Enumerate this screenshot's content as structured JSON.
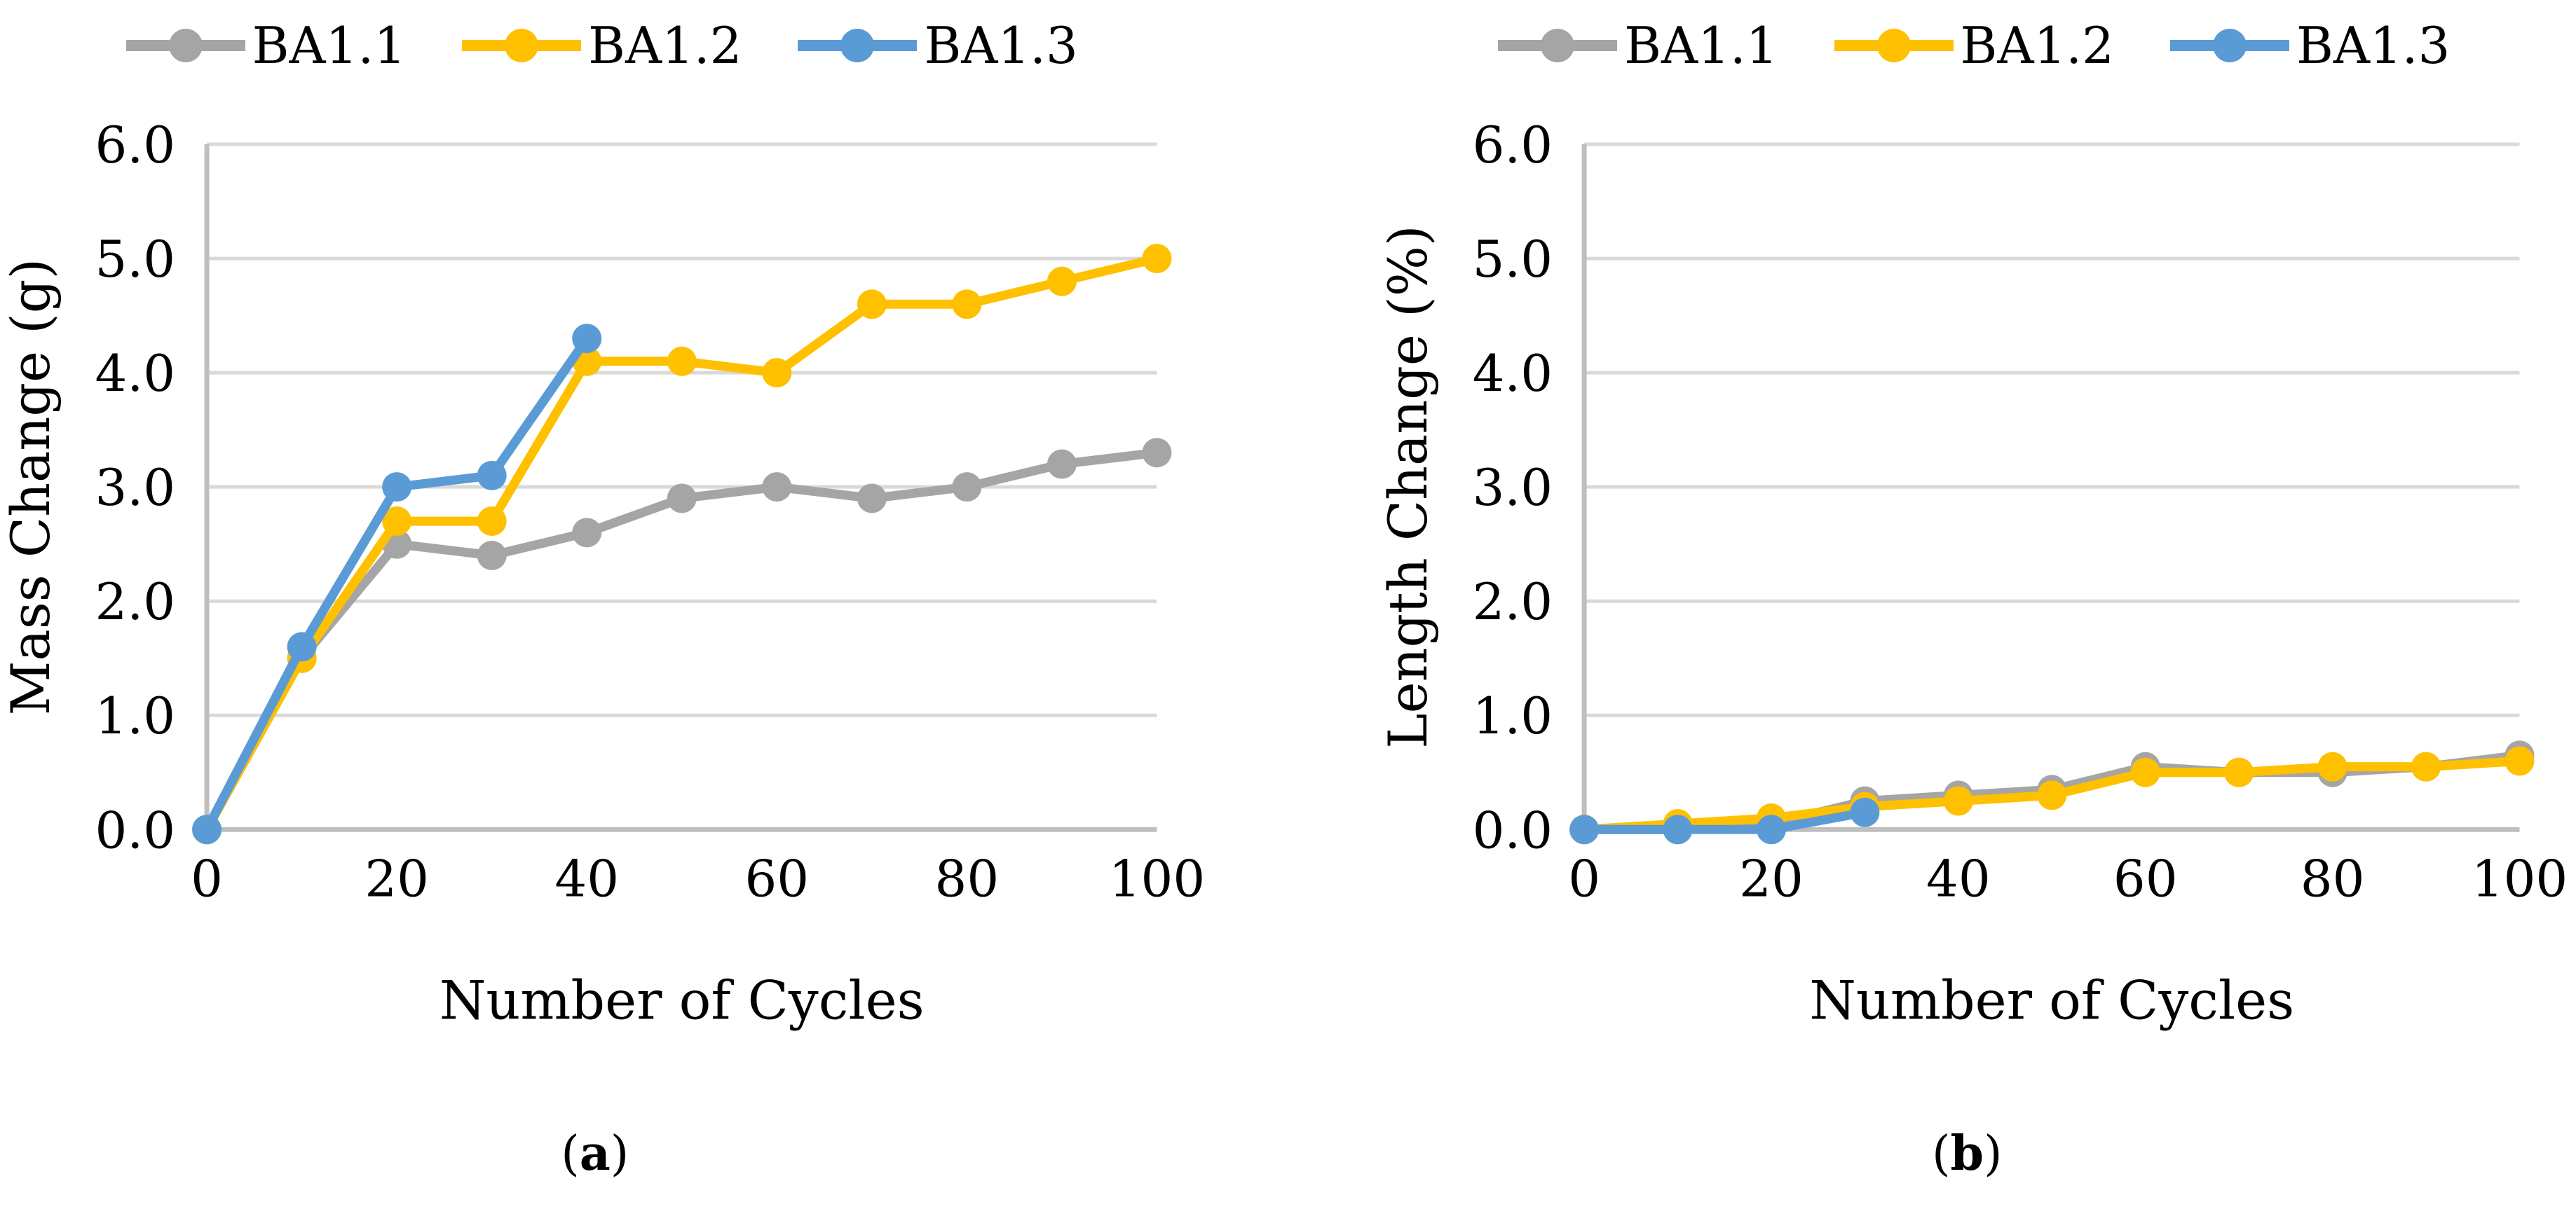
{
  "figure": {
    "background": "#FFFFFF",
    "grid_color": "#D9D9D9",
    "axis_color": "#BFBFBF",
    "text_color": "#000000"
  },
  "chart_data": [
    {
      "type": "line",
      "panel": "a",
      "caption": "(a)",
      "caption_parts": {
        "open": "(",
        "letter": "a",
        "close": ")"
      },
      "title": "",
      "xlabel": "Number of Cycles",
      "ylabel": "Mass Change (g)",
      "xlim": [
        0,
        100
      ],
      "ylim": [
        0,
        6.0
      ],
      "grid": true,
      "legend_position": "top",
      "x_ticks": [
        0,
        20,
        40,
        60,
        80,
        100
      ],
      "x_tick_labels": [
        "0",
        "20",
        "40",
        "60",
        "80",
        "100"
      ],
      "y_ticks": [
        0,
        1,
        2,
        3,
        4,
        5,
        6
      ],
      "y_tick_labels": [
        "0.0",
        "1.0",
        "2.0",
        "3.0",
        "4.0",
        "5.0",
        "6.0"
      ],
      "series": [
        {
          "name": "BA1.1",
          "color": "#A5A5A5",
          "x": [
            0,
            10,
            20,
            30,
            40,
            50,
            60,
            70,
            80,
            90,
            100
          ],
          "values": [
            0.0,
            1.5,
            2.5,
            2.4,
            2.6,
            2.9,
            3.0,
            2.9,
            3.0,
            3.2,
            3.3
          ]
        },
        {
          "name": "BA1.2",
          "color": "#FFC000",
          "x": [
            0,
            10,
            20,
            30,
            40,
            50,
            60,
            70,
            80,
            90,
            100
          ],
          "values": [
            0.0,
            1.5,
            2.7,
            2.7,
            4.1,
            4.1,
            4.0,
            4.6,
            4.6,
            4.8,
            5.0
          ]
        },
        {
          "name": "BA1.3",
          "color": "#5B9BD5",
          "x": [
            0,
            10,
            20,
            30,
            40
          ],
          "values": [
            0.0,
            1.6,
            3.0,
            3.1,
            4.3
          ]
        }
      ]
    },
    {
      "type": "line",
      "panel": "b",
      "caption": "(b)",
      "caption_parts": {
        "open": "(",
        "letter": "b",
        "close": ")"
      },
      "title": "",
      "xlabel": "Number of Cycles",
      "ylabel": "Length Change (%)",
      "xlim": [
        0,
        100
      ],
      "ylim": [
        0,
        6.0
      ],
      "grid": true,
      "legend_position": "top",
      "x_ticks": [
        0,
        20,
        40,
        60,
        80,
        100
      ],
      "x_tick_labels": [
        "0",
        "20",
        "40",
        "60",
        "80",
        "100"
      ],
      "y_ticks": [
        0,
        1,
        2,
        3,
        4,
        5,
        6
      ],
      "y_tick_labels": [
        "0.0",
        "1.0",
        "2.0",
        "3.0",
        "4.0",
        "5.0",
        "6.0"
      ],
      "series": [
        {
          "name": "BA1.1",
          "color": "#A5A5A5",
          "x": [
            0,
            10,
            20,
            30,
            40,
            50,
            60,
            70,
            80,
            90,
            100
          ],
          "values": [
            0.0,
            0.0,
            0.05,
            0.25,
            0.3,
            0.35,
            0.55,
            0.5,
            0.5,
            0.55,
            0.65
          ]
        },
        {
          "name": "BA1.2",
          "color": "#FFC000",
          "x": [
            0,
            10,
            20,
            30,
            40,
            50,
            60,
            70,
            80,
            90,
            100
          ],
          "values": [
            0.0,
            0.05,
            0.1,
            0.2,
            0.25,
            0.3,
            0.5,
            0.5,
            0.55,
            0.55,
            0.6
          ]
        },
        {
          "name": "BA1.3",
          "color": "#5B9BD5",
          "x": [
            0,
            10,
            20,
            30
          ],
          "values": [
            0.0,
            0.0,
            0.0,
            0.15
          ]
        }
      ]
    }
  ]
}
